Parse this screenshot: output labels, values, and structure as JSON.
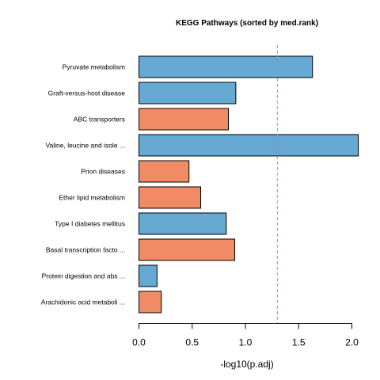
{
  "chart_data": {
    "type": "bar",
    "orientation": "horizontal",
    "title": "KEGG Pathways (sorted by med.rank)",
    "xlabel": "-log10(p.adj)",
    "ylabel": "",
    "xlim": [
      0,
      2.0
    ],
    "xticks": [
      0.0,
      0.5,
      1.0,
      1.5,
      2.0
    ],
    "xtick_labels": [
      "0.0",
      "0.5",
      "1.0",
      "1.5",
      "2.0"
    ],
    "reference_line": {
      "value": 1.3,
      "style": "dashed",
      "color": "#ff6b6b"
    },
    "grid": false,
    "legend": "none",
    "colors": {
      "blue": "#66a9d2",
      "salmon": "#f08b65"
    },
    "bars": [
      {
        "label": "Pyruvate metabolism",
        "value": 1.63,
        "color": "blue"
      },
      {
        "label": "Graft-versus-host disease",
        "value": 0.91,
        "color": "blue"
      },
      {
        "label": "ABC transporters",
        "value": 0.84,
        "color": "salmon"
      },
      {
        "label": "Valine, leucine and isole ...",
        "value": 2.06,
        "color": "blue"
      },
      {
        "label": "Prion diseases",
        "value": 0.47,
        "color": "salmon"
      },
      {
        "label": "Ether lipid metabolism",
        "value": 0.58,
        "color": "salmon"
      },
      {
        "label": "Type I diabetes mellitus",
        "value": 0.82,
        "color": "blue"
      },
      {
        "label": "Basal transcription facto ...",
        "value": 0.9,
        "color": "salmon"
      },
      {
        "label": "Protein digestion and abs ...",
        "value": 0.17,
        "color": "blue"
      },
      {
        "label": "Arachidonic acid metaboli ...",
        "value": 0.21,
        "color": "salmon"
      }
    ]
  }
}
